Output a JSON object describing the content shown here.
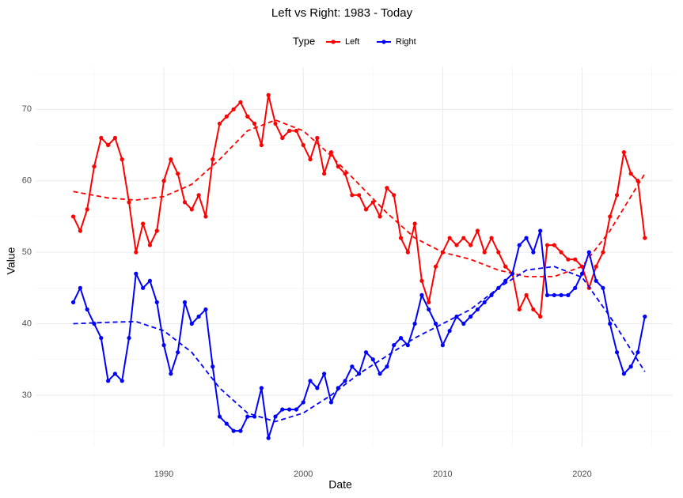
{
  "chart_data": {
    "type": "line",
    "title": "Left vs Right: 1983 - Today",
    "x_label": "Date",
    "y_label": "Value",
    "legend_title": "Type",
    "legend_position": "top",
    "grid": true,
    "xlim": [
      1980.8,
      2026.5
    ],
    "ylim": [
      22.8,
      75.9
    ],
    "xticks": [
      1990,
      2000,
      2010,
      2020
    ],
    "yticks": [
      30,
      40,
      50,
      60,
      70
    ],
    "xminor": [
      1985,
      1995,
      2005,
      2015,
      2025
    ],
    "yminor": [
      25,
      35,
      45,
      55,
      65,
      75
    ],
    "x": [
      1983.5,
      1984,
      1984.5,
      1985,
      1985.5,
      1986,
      1986.5,
      1987,
      1987.5,
      1988,
      1988.5,
      1989,
      1989.5,
      1990,
      1990.5,
      1991,
      1991.5,
      1992,
      1992.5,
      1993,
      1993.5,
      1994,
      1994.5,
      1995,
      1995.5,
      1996,
      1996.5,
      1997,
      1997.5,
      1998,
      1998.5,
      1999,
      1999.5,
      2000,
      2000.5,
      2001,
      2001.5,
      2002,
      2002.5,
      2003,
      2003.5,
      2004,
      2004.5,
      2005,
      2005.5,
      2006,
      2006.5,
      2007,
      2007.5,
      2008,
      2008.5,
      2009,
      2009.5,
      2010,
      2010.5,
      2011,
      2011.5,
      2012,
      2012.5,
      2013,
      2013.5,
      2014,
      2014.5,
      2015,
      2015.5,
      2016,
      2016.5,
      2017,
      2017.5,
      2018,
      2018.5,
      2019,
      2019.5,
      2020,
      2020.5,
      2021,
      2021.5,
      2022,
      2022.5,
      2023,
      2023.5,
      2024,
      2024.5
    ],
    "trend_x": [
      1983.5,
      1986,
      1988,
      1990,
      1992,
      1994,
      1996,
      1998,
      2000,
      2002,
      2004,
      2006,
      2008,
      2010,
      2012,
      2014,
      2016,
      2018,
      2020,
      2022,
      2024.5
    ],
    "series": [
      {
        "name": "Left",
        "color": "#ff0000",
        "values": [
          55,
          53,
          56,
          62,
          66,
          65,
          66,
          63,
          57,
          50,
          54,
          51,
          53,
          60,
          63,
          61,
          57,
          56,
          58,
          55,
          63,
          68,
          69,
          70,
          71,
          69,
          68,
          65,
          72,
          68,
          66,
          67,
          67,
          65,
          63,
          66,
          61,
          64,
          62,
          61,
          58,
          58,
          56,
          57,
          55,
          59,
          58,
          52,
          50,
          54,
          46,
          43,
          48,
          50,
          52,
          51,
          52,
          51,
          53,
          50,
          52,
          50,
          48,
          47,
          42,
          44,
          42,
          41,
          51,
          51,
          50,
          49,
          49,
          48,
          45,
          48,
          50,
          55,
          58,
          64,
          61,
          60,
          52
        ],
        "trend": [
          58.5,
          57.6,
          57.3,
          57.8,
          59.5,
          63,
          67,
          68.5,
          67,
          63.5,
          59.5,
          55.5,
          52,
          50,
          49,
          47.5,
          46.6,
          46.6,
          48,
          53,
          61
        ]
      },
      {
        "name": "Right",
        "color": "#0000ff",
        "values": [
          43,
          45,
          42,
          40,
          38,
          32,
          33,
          32,
          38,
          47,
          45,
          46,
          43,
          37,
          33,
          36,
          43,
          40,
          41,
          42,
          34,
          27,
          26,
          25,
          25,
          27,
          27,
          31,
          24,
          27,
          28,
          28,
          28,
          29,
          32,
          31,
          33,
          29,
          31,
          32,
          34,
          33,
          36,
          35,
          33,
          34,
          37,
          38,
          37,
          40,
          44,
          42,
          40,
          37,
          39,
          41,
          40,
          41,
          42,
          43,
          44,
          45,
          46,
          47,
          51,
          52,
          50,
          53,
          44,
          44,
          44,
          44,
          45,
          47,
          50,
          46,
          45,
          40,
          36,
          33,
          34,
          36,
          41
        ],
        "trend": [
          40,
          40.2,
          40.3,
          39,
          36,
          31,
          27.5,
          26.3,
          27.5,
          30,
          33,
          35.5,
          38,
          40,
          42,
          45,
          47.5,
          48,
          46.5,
          41,
          33.3
        ]
      }
    ]
  }
}
